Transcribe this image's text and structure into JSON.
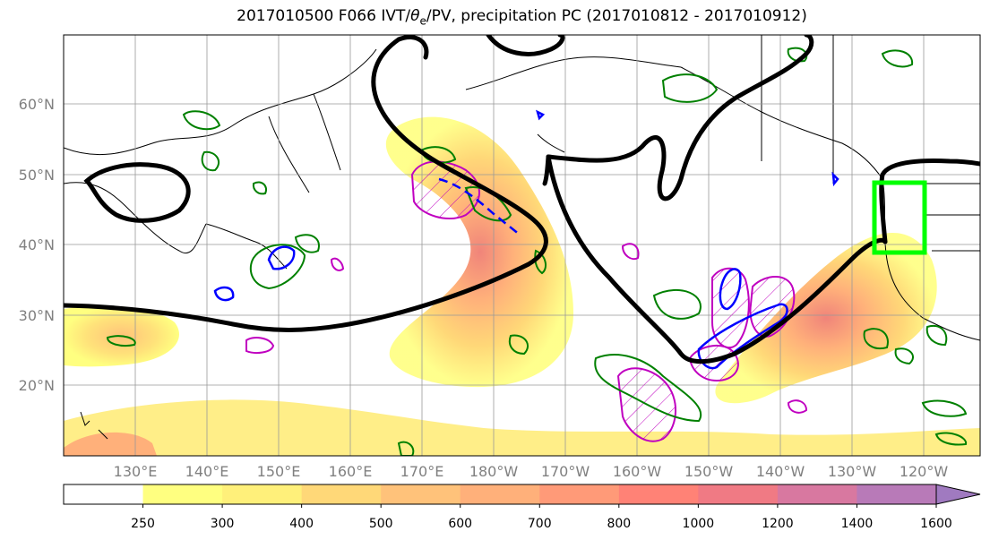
{
  "figure": {
    "title_prefix": "2017010500 F066 IVT/",
    "title_theta": "θ",
    "title_sub": "e",
    "title_suffix": "/PV, precipitation PC (2017010812 - 2017010912)"
  },
  "map": {
    "lat_labels": [
      "60°N",
      "50°N",
      "40°N",
      "30°N",
      "20°N"
    ],
    "lon_labels": [
      "130°E",
      "140°E",
      "150°E",
      "160°E",
      "170°E",
      "180°W",
      "170°W",
      "160°W",
      "150°W",
      "140°W",
      "130°W",
      "120°W"
    ],
    "colors": {
      "contour_black": "#000000",
      "contour_green": "#008000",
      "contour_blue": "#0000ff",
      "contour_magenta": "#c000c0",
      "box_green": "#00ff00",
      "grid": "#999999"
    }
  },
  "colorbar": {
    "ticks": [
      "250",
      "300",
      "400",
      "500",
      "600",
      "700",
      "800",
      "1000",
      "1200",
      "1400",
      "1600"
    ],
    "colors": [
      "#ffffff",
      "#ffff80",
      "#fff07a",
      "#ffd878",
      "#ffc27a",
      "#ffb07a",
      "#ff9a78",
      "#ff8276",
      "#f07a84",
      "#d878a0",
      "#b87ab8",
      "#a07ac0"
    ]
  }
}
